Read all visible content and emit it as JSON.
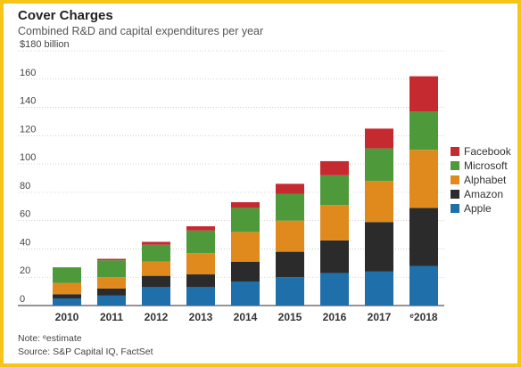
{
  "title": "Cover Charges",
  "subtitle": "Combined R&D and capital expenditures per year",
  "note": "Note: ᵉestimate",
  "source": "Source: S&P Capital IQ, FactSet",
  "chart_data": {
    "type": "bar",
    "stacked": true,
    "categories": [
      "2010",
      "2011",
      "2012",
      "2013",
      "2014",
      "2015",
      "2016",
      "2017",
      "ᵉ2018"
    ],
    "y_ticks": [
      "0",
      "20",
      "40",
      "60",
      "80",
      "100",
      "120",
      "140",
      "160",
      "$180 billion"
    ],
    "ylim": [
      0,
      180
    ],
    "grid": true,
    "legend_position": "right",
    "series": [
      {
        "name": "Apple",
        "color": "#1f6fab",
        "values": [
          5,
          7,
          13,
          13,
          17,
          20,
          23,
          24,
          28
        ]
      },
      {
        "name": "Amazon",
        "color": "#2b2b2b",
        "values": [
          3,
          5,
          8,
          9,
          14,
          18,
          23,
          35,
          41
        ]
      },
      {
        "name": "Alphabet",
        "color": "#e08a1e",
        "values": [
          8,
          8,
          10,
          15,
          21,
          22,
          25,
          29,
          41
        ]
      },
      {
        "name": "Microsoft",
        "color": "#4e9a3a",
        "values": [
          11,
          12,
          12,
          16,
          17,
          19,
          21,
          23,
          27
        ]
      },
      {
        "name": "Facebook",
        "color": "#c62a31",
        "values": [
          0,
          1,
          2,
          3,
          4,
          7,
          10,
          14,
          25
        ]
      }
    ]
  }
}
